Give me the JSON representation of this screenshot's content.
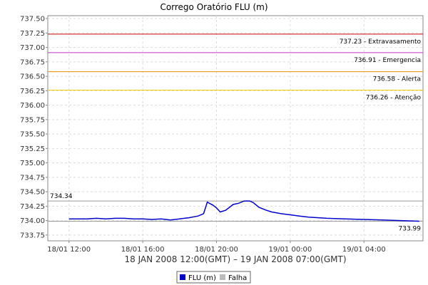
{
  "chart_data": {
    "type": "line",
    "title": "Corrego Oratório FLU (m)",
    "subtitle": "18 JAN 2008 12:00(GMT) – 19 JAN 2008 07:00(GMT)",
    "xlabel": "",
    "ylabel": "",
    "ylim": [
      733.65,
      737.55
    ],
    "y_ticks": [
      "737.50",
      "737.25",
      "737.00",
      "736.75",
      "736.50",
      "736.25",
      "736.00",
      "735.75",
      "735.50",
      "735.25",
      "735.00",
      "734.75",
      "734.50",
      "734.25",
      "734.00",
      "733.75"
    ],
    "x_ticks": [
      {
        "label": "18/01 12:00",
        "hours": 0
      },
      {
        "label": "18/01 16:00",
        "hours": 4
      },
      {
        "label": "18/01 20:00",
        "hours": 8
      },
      {
        "label": "19/01 00:00",
        "hours": 12
      },
      {
        "label": "19/01 04:00",
        "hours": 16
      }
    ],
    "x_range_hours": [
      -1.15,
      19.2
    ],
    "grid": true,
    "legend_position": "bottom-center",
    "series": [
      {
        "name": "FLU (m)",
        "color": "#0000cc",
        "x_hours": [
          0,
          1,
          1.5,
          2,
          2.5,
          3,
          3.5,
          4,
          4.5,
          5,
          5.5,
          6,
          6.5,
          7,
          7.3,
          7.5,
          7.8,
          8.0,
          8.2,
          8.5,
          8.9,
          9.2,
          9.5,
          9.8,
          10,
          10.3,
          10.7,
          11,
          11.5,
          12,
          12.5,
          13,
          14,
          15,
          16,
          17,
          18,
          19
        ],
        "values": [
          734.03,
          734.03,
          734.04,
          734.03,
          734.04,
          734.04,
          734.03,
          734.03,
          734.02,
          734.03,
          734.01,
          734.03,
          734.05,
          734.08,
          734.12,
          734.32,
          734.27,
          734.22,
          734.15,
          734.18,
          734.28,
          734.3,
          734.34,
          734.34,
          734.31,
          734.23,
          734.18,
          734.15,
          734.12,
          734.1,
          734.08,
          734.06,
          734.04,
          734.03,
          734.02,
          734.01,
          734.0,
          733.99
        ]
      },
      {
        "name": "Falha",
        "color": "#bbbbbb",
        "x_hours": [],
        "values": []
      }
    ],
    "thresholds": [
      {
        "value": 737.23,
        "label": "737.23 - Extravasamento",
        "color": "#cc0000"
      },
      {
        "value": 736.91,
        "label": "736.91 - Emergencia",
        "color": "#cc33cc"
      },
      {
        "value": 736.58,
        "label": "736.58 - Alerta",
        "color": "#ee8800"
      },
      {
        "value": 736.26,
        "label": "736.26 - Atenção",
        "color": "#eecc00"
      }
    ],
    "max": {
      "value": "734.34"
    },
    "min": {
      "value": "733.99"
    }
  }
}
